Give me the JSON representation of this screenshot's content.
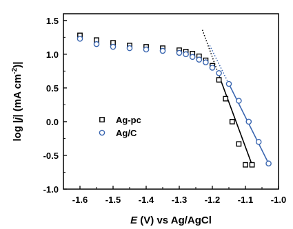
{
  "chart_data": {
    "type": "scatter",
    "title": "",
    "xlabel": {
      "italic": "E",
      "rest": " (V) vs Ag/AgCl"
    },
    "ylabel": {
      "pre": "log |",
      "italic": "j",
      "post": "| (mA cm",
      "sup": "-2",
      "end": ")|"
    },
    "xlim": [
      -1.65,
      -1.0
    ],
    "ylim": [
      -1.0,
      1.6
    ],
    "xticks": [
      -1.6,
      -1.5,
      -1.4,
      -1.3,
      -1.2,
      -1.1,
      -1.0
    ],
    "xtick_labels": [
      "-1.6",
      "-1.5",
      "-1.4",
      "-1.3",
      "-1.2",
      "-1.1",
      "-1.0"
    ],
    "yticks": [
      -1.0,
      -0.5,
      0.0,
      0.5,
      1.0,
      1.5
    ],
    "ytick_labels": [
      "-1.0",
      "-0.5",
      "0.0",
      "0.5",
      "1.0",
      "1.5"
    ],
    "legend_position": "center-left",
    "series": [
      {
        "name": "Ag-pc",
        "marker": "square",
        "color": "#000000",
        "x": [
          -1.6,
          -1.55,
          -1.5,
          -1.45,
          -1.4,
          -1.35,
          -1.3,
          -1.28,
          -1.26,
          -1.24,
          -1.22,
          -1.2,
          -1.18,
          -1.16,
          -1.14,
          -1.12,
          -1.1,
          -1.08
        ],
        "y": [
          1.28,
          1.21,
          1.17,
          1.13,
          1.11,
          1.09,
          1.06,
          1.04,
          1.01,
          0.97,
          0.91,
          0.83,
          0.62,
          0.34,
          0.0,
          -0.33,
          -0.64,
          -0.64
        ],
        "fit_line": {
          "x": [
            -1.175,
            -1.08
          ],
          "y": [
            0.62,
            -0.64
          ]
        },
        "tafel_extension": {
          "x": [
            -1.23,
            -1.175
          ],
          "y": [
            1.36,
            0.62
          ]
        }
      },
      {
        "name": "Ag/C",
        "marker": "circle",
        "color": "#3a66b0",
        "x": [
          -1.6,
          -1.55,
          -1.5,
          -1.45,
          -1.4,
          -1.35,
          -1.3,
          -1.28,
          -1.26,
          -1.24,
          -1.22,
          -1.2,
          -1.18,
          -1.15,
          -1.12,
          -1.09,
          -1.06,
          -1.03
        ],
        "y": [
          1.23,
          1.15,
          1.11,
          1.09,
          1.07,
          1.05,
          1.02,
          1.0,
          0.96,
          0.92,
          0.88,
          0.8,
          0.72,
          0.56,
          0.31,
          0.0,
          -0.3,
          -0.62
        ],
        "fit_line": {
          "x": [
            -1.15,
            -1.03
          ],
          "y": [
            0.56,
            -0.62
          ]
        },
        "tafel_extension": {
          "x": [
            -1.208,
            -1.15
          ],
          "y": [
            1.13,
            0.56
          ]
        }
      }
    ]
  }
}
